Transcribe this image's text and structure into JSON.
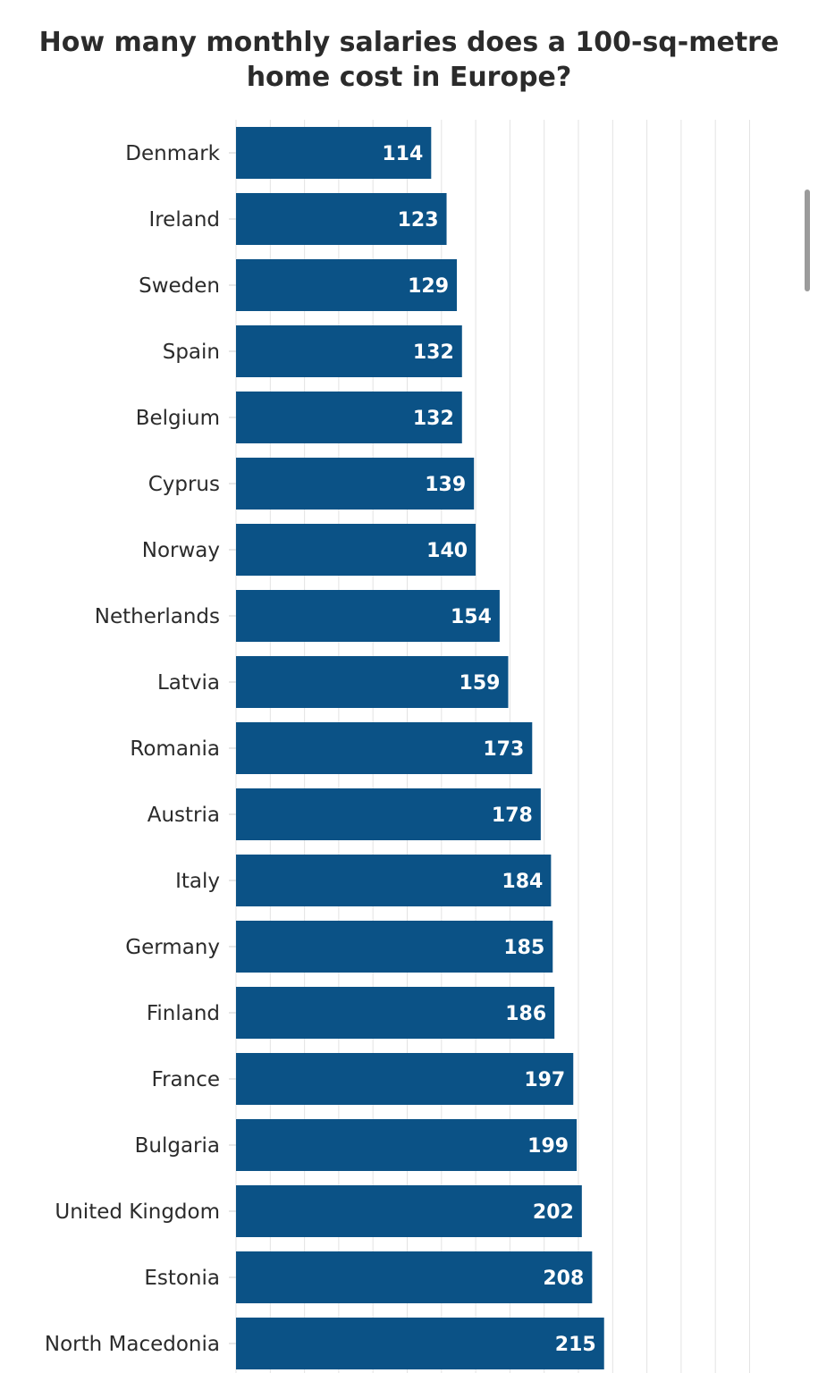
{
  "chart_data": {
    "type": "bar",
    "orientation": "horizontal",
    "title": "How many monthly salaries does a 100-sq-metre home cost in Europe?",
    "title_lines": [
      "How many monthly salaries does a 100-sq-metre",
      "home cost in Europe?"
    ],
    "categories": [
      "Denmark",
      "Ireland",
      "Sweden",
      "Spain",
      "Belgium",
      "Cyprus",
      "Norway",
      "Netherlands",
      "Latvia",
      "Romania",
      "Austria",
      "Italy",
      "Germany",
      "Finland",
      "France",
      "Bulgaria",
      "United Kingdom",
      "Estonia",
      "North Macedonia"
    ],
    "values": [
      114,
      123,
      129,
      132,
      132,
      139,
      140,
      154,
      159,
      173,
      178,
      184,
      185,
      186,
      197,
      199,
      202,
      208,
      215
    ],
    "xlim": [
      0,
      300
    ],
    "xlabel": "",
    "ylabel": "",
    "grid": true,
    "legend": "none",
    "data_labels": "inside-end",
    "colors": {
      "bar": "#0b5286",
      "bar_label": "#ffffff",
      "category_label": "#2b2b2b",
      "gridline": "#e3e3e3",
      "title": "#2b2b2b"
    }
  }
}
